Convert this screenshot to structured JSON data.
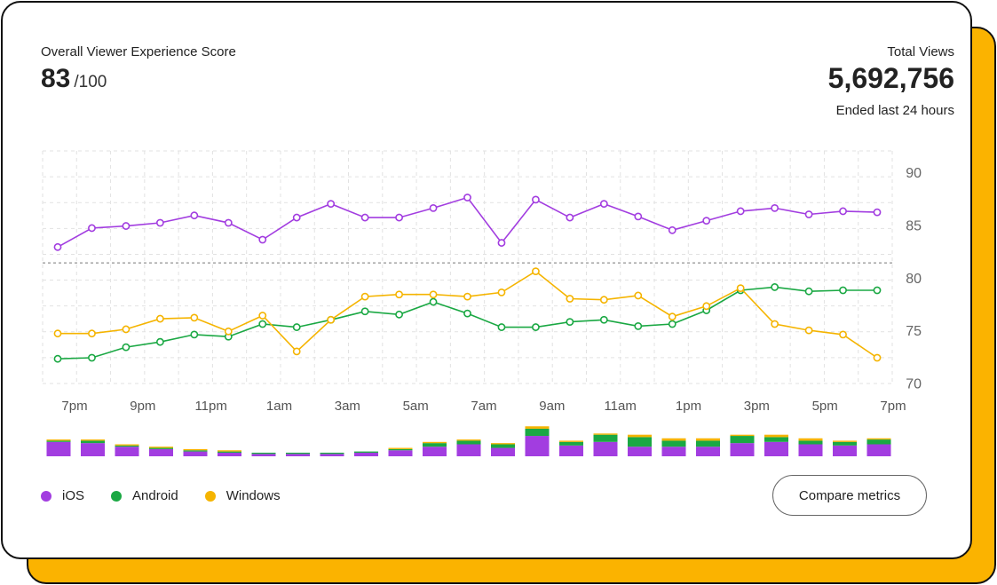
{
  "header": {
    "score_label": "Overall Viewer Experience Score",
    "score_value": "83",
    "score_max": "/100",
    "views_label": "Total Views",
    "views_value": "5,692,756",
    "views_sub": "Ended last 24 hours"
  },
  "legend": [
    {
      "name": "iOS",
      "color": "#a23de0"
    },
    {
      "name": "Android",
      "color": "#1aa843"
    },
    {
      "name": "Windows",
      "color": "#f5b400"
    }
  ],
  "compare_label": "Compare metrics",
  "chart_data": {
    "type": "line",
    "title": "",
    "xlabel": "",
    "ylabel": "",
    "ylim": [
      70,
      91
    ],
    "yticks": [
      70,
      75,
      80,
      85,
      90
    ],
    "xtick_labels": [
      "7pm",
      "9pm",
      "11pm",
      "1am",
      "3am",
      "5am",
      "7am",
      "9am",
      "11am",
      "1pm",
      "3pm",
      "5pm",
      "7pm"
    ],
    "threshold": 81.4,
    "grid": true,
    "series": [
      {
        "name": "iOS",
        "color": "#a23de0",
        "values": [
          82.9,
          84.7,
          84.9,
          85.2,
          85.9,
          85.2,
          83.6,
          85.7,
          87.0,
          85.7,
          85.7,
          86.6,
          87.6,
          83.3,
          87.4,
          85.7,
          87.0,
          85.8,
          84.5,
          85.4,
          86.3,
          86.6,
          86.0,
          86.3,
          86.2
        ]
      },
      {
        "name": "Android",
        "color": "#1aa843",
        "values": [
          72.3,
          72.4,
          73.4,
          73.9,
          74.6,
          74.4,
          75.6,
          75.3,
          76.0,
          76.8,
          76.5,
          77.7,
          76.6,
          75.3,
          75.3,
          75.8,
          76.0,
          75.4,
          75.6,
          76.9,
          78.8,
          79.1,
          78.7,
          78.8,
          78.8
        ]
      },
      {
        "name": "Windows",
        "color": "#f5b400",
        "values": [
          74.7,
          74.7,
          75.1,
          76.1,
          76.2,
          74.9,
          76.4,
          73.0,
          76.0,
          78.2,
          78.4,
          78.4,
          78.2,
          78.6,
          80.6,
          78.0,
          77.9,
          78.3,
          76.3,
          77.3,
          79.0,
          75.6,
          75.0,
          74.6,
          72.4
        ]
      }
    ],
    "volume_bars": {
      "note": "relative stacked viewer volume per hour",
      "ios": [
        12,
        11,
        8,
        6,
        4,
        3,
        2,
        2,
        2,
        3,
        5,
        8,
        10,
        7,
        17,
        9,
        12,
        8,
        8,
        8,
        11,
        12,
        10,
        9,
        10
      ],
      "android": [
        1,
        2,
        1,
        1,
        1,
        1,
        1,
        1,
        1,
        1,
        1,
        3,
        3,
        3,
        6,
        3,
        6,
        8,
        5,
        5,
        6,
        4,
        3,
        3,
        4
      ],
      "windows": [
        1,
        1,
        1,
        1,
        1,
        1,
        0,
        0,
        0,
        0,
        1,
        1,
        1,
        1,
        2,
        1,
        1,
        2,
        2,
        2,
        1,
        2,
        2,
        1,
        1
      ]
    }
  }
}
